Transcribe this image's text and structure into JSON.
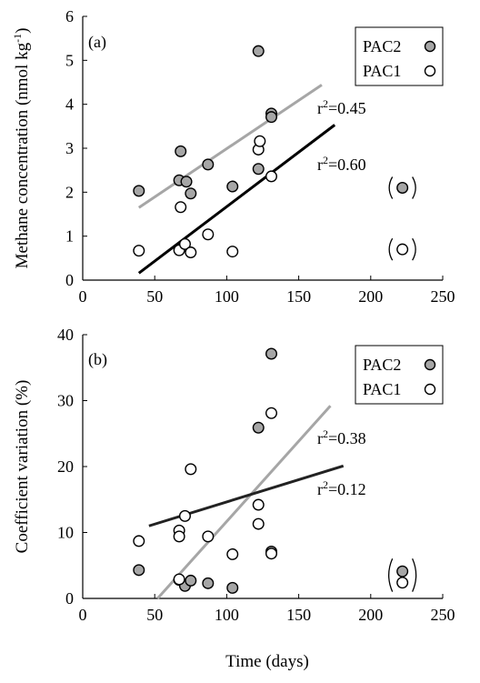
{
  "figure": {
    "x_axis_title": "Time (days)"
  },
  "chart_data": [
    {
      "type": "scatter",
      "panel_label": "(a)",
      "ylabel": "Methane concentration (nmol kg",
      "ylabel_sup": "-1",
      "ylabel_close": ")",
      "xlim": [
        0,
        250
      ],
      "ylim": [
        0,
        6
      ],
      "x_ticks": [
        0,
        50,
        100,
        150,
        200,
        250
      ],
      "y_ticks": [
        0,
        1,
        2,
        3,
        4,
        5,
        6
      ],
      "x_tick_labels": [
        "0",
        "50",
        "100",
        "150",
        "200",
        "250"
      ],
      "y_tick_labels": [
        "0",
        "1",
        "2",
        "3",
        "4",
        "5",
        "6"
      ],
      "legend_position": "top-right",
      "series": [
        {
          "name": "PAC2",
          "color": "#a6a6a6",
          "marker": "filled-circle",
          "points": [
            [
              39,
              2.03
            ],
            [
              67,
              2.27
            ],
            [
              68,
              2.93
            ],
            [
              72,
              2.24
            ],
            [
              75,
              1.97
            ],
            [
              87,
              2.63
            ],
            [
              104,
              2.13
            ],
            [
              122,
              5.21
            ],
            [
              122,
              2.53
            ],
            [
              131,
              3.79
            ],
            [
              131,
              3.71
            ]
          ],
          "excluded_points": [
            [
              222,
              2.1
            ]
          ],
          "fit": {
            "x": [
              39,
              166
            ],
            "y": [
              1.65,
              4.44
            ],
            "label_prefix": "r",
            "label_sup": "2",
            "label_value": "=0.45"
          }
        },
        {
          "name": "PAC1",
          "color": "#ffffff",
          "marker": "open-circle",
          "points": [
            [
              39,
              0.67
            ],
            [
              67,
              0.68
            ],
            [
              68,
              1.66
            ],
            [
              71,
              0.82
            ],
            [
              75,
              0.63
            ],
            [
              87,
              1.04
            ],
            [
              104,
              0.65
            ],
            [
              122,
              2.97
            ],
            [
              123,
              3.16
            ],
            [
              131,
              2.36
            ]
          ],
          "excluded_points": [
            [
              222,
              0.7
            ]
          ],
          "fit": {
            "x": [
              39,
              175
            ],
            "y": [
              0.16,
              3.53
            ],
            "label_prefix": "r",
            "label_sup": "2",
            "label_value": "=0.60"
          }
        }
      ]
    },
    {
      "type": "scatter",
      "panel_label": "(b)",
      "ylabel": "Coefficient variation (%)",
      "xlim": [
        0,
        250
      ],
      "ylim": [
        0,
        40
      ],
      "x_ticks": [
        0,
        50,
        100,
        150,
        200,
        250
      ],
      "y_ticks": [
        0,
        10,
        20,
        30,
        40
      ],
      "x_tick_labels": [
        "0",
        "50",
        "100",
        "150",
        "200",
        "250"
      ],
      "y_tick_labels": [
        "0",
        "10",
        "20",
        "30",
        "40"
      ],
      "legend_position": "top-right",
      "series": [
        {
          "name": "PAC2",
          "color": "#a6a6a6",
          "marker": "filled-circle",
          "points": [
            [
              39,
              4.3
            ],
            [
              67,
              2.8
            ],
            [
              71,
              1.9
            ],
            [
              75,
              2.7
            ],
            [
              87,
              2.3
            ],
            [
              104,
              1.6
            ],
            [
              122,
              25.9
            ],
            [
              131,
              37.1
            ],
            [
              131,
              7.1
            ]
          ],
          "excluded_points": [
            [
              222,
              4.1
            ]
          ],
          "fit": {
            "x": [
              52,
              172
            ],
            "y": [
              0.0,
              29.2
            ],
            "label_prefix": "r",
            "label_sup": "2",
            "label_value": "=0.38"
          }
        },
        {
          "name": "PAC1",
          "color": "#ffffff",
          "marker": "open-circle",
          "points": [
            [
              39,
              8.7
            ],
            [
              67,
              2.9
            ],
            [
              67,
              10.3
            ],
            [
              67,
              9.4
            ],
            [
              71,
              12.5
            ],
            [
              75,
              19.6
            ],
            [
              87,
              9.4
            ],
            [
              104,
              6.7
            ],
            [
              122,
              14.2
            ],
            [
              122,
              11.3
            ],
            [
              131,
              28.1
            ],
            [
              131,
              6.8
            ]
          ],
          "excluded_points": [
            [
              222,
              2.4
            ]
          ],
          "fit": {
            "x": [
              46,
              181
            ],
            "y": [
              11.0,
              20.1
            ],
            "label_prefix": "r",
            "label_sup": "2",
            "label_value": "=0.12"
          }
        }
      ]
    }
  ]
}
